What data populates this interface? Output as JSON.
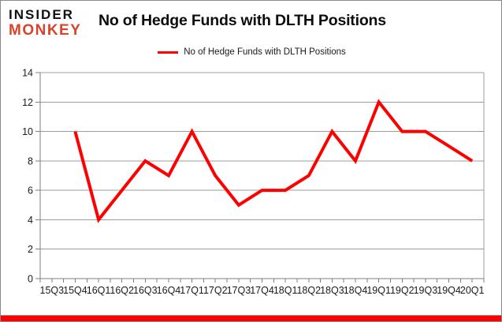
{
  "logo": {
    "line1": "INSIDER",
    "line2": "MONKEY"
  },
  "title": "No of Hedge Funds with DLTH Positions",
  "legend": {
    "label": "No of Hedge Funds with DLTH Positions"
  },
  "colors": {
    "series_red": "#fe0000",
    "logo_red": "#d9432c",
    "grid_grey": "#9c9c9c",
    "axis_grey": "#7f7f7f",
    "text_dark": "#1a1a1a",
    "bottom_bar_red": "#ff0000"
  },
  "chart_data": {
    "type": "line",
    "title": "No of Hedge Funds with DLTH Positions",
    "categories": [
      "15Q3",
      "15Q4",
      "16Q1",
      "16Q2",
      "16Q3",
      "16Q4",
      "17Q1",
      "17Q2",
      "17Q3",
      "17Q4",
      "18Q1",
      "18Q2",
      "18Q3",
      "18Q4",
      "19Q1",
      "19Q2",
      "19Q3",
      "19Q4",
      "20Q1"
    ],
    "series": [
      {
        "name": "No of Hedge Funds with DLTH Positions",
        "color": "#fe0000",
        "values": [
          null,
          10,
          4,
          6,
          8,
          7,
          10,
          7,
          5,
          6,
          6,
          7,
          10,
          8,
          12,
          10,
          10,
          9,
          8
        ]
      }
    ],
    "xlabel": "",
    "ylabel": "",
    "ylim": [
      0,
      14
    ],
    "yticks": [
      0,
      2,
      4,
      6,
      8,
      10,
      12,
      14
    ],
    "grid": "horizontal",
    "legend_position": "top-center"
  }
}
